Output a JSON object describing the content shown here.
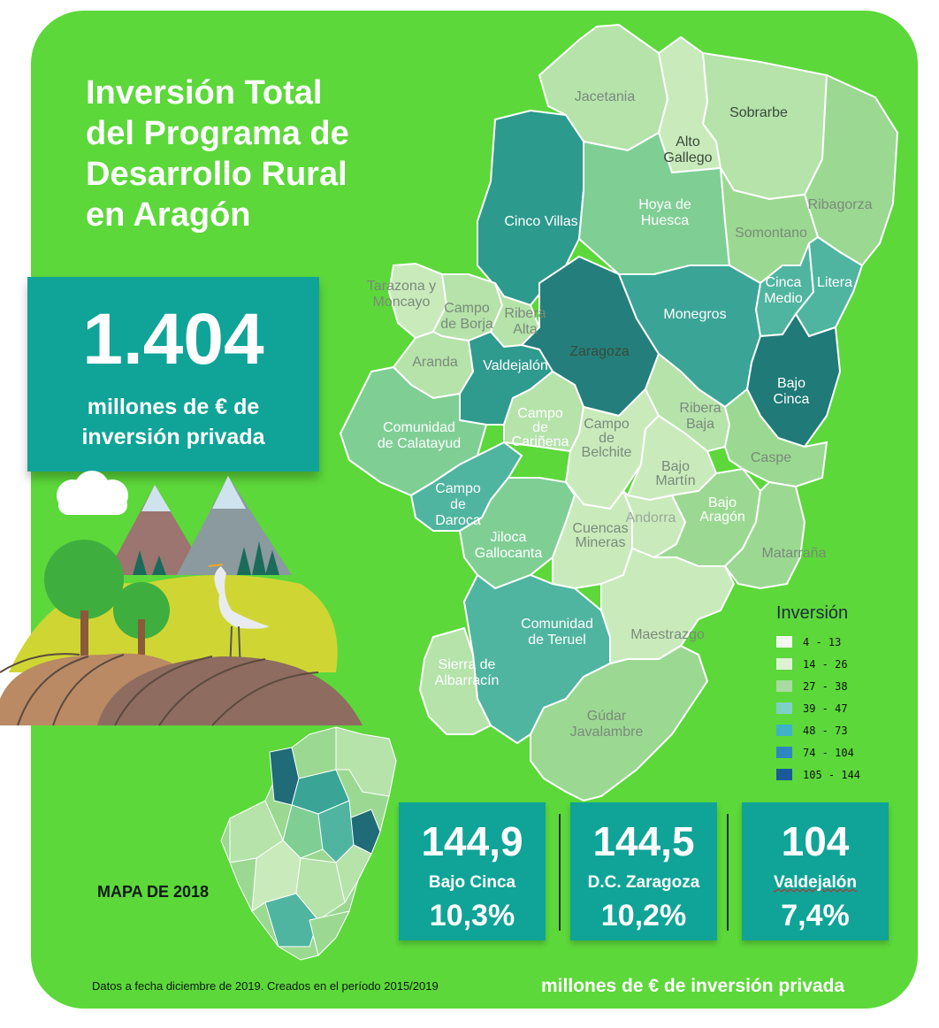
{
  "title_lines": [
    "Inversión Total",
    "del Programa de",
    "Desarrollo Rural",
    "en Aragón"
  ],
  "headline": {
    "value": "1.404",
    "lines": [
      "millones de € de",
      "inversión privada"
    ]
  },
  "regions": [
    {
      "name": "Jacetania",
      "label": "Jacetania",
      "value_band": "14 - 26",
      "color": "#b5e3aa"
    },
    {
      "name": "Alto Gallego",
      "label": "Alto Gallego",
      "value_band": "4 - 13",
      "color": "#c9ebbc"
    },
    {
      "name": "Sobrarbe",
      "label": "Sobrarbe",
      "value_band": "14 - 26",
      "color": "#b5e3aa"
    },
    {
      "name": "Ribagorza",
      "label": "Ribagorza",
      "value_band": "27 - 38",
      "color": "#9bd992"
    },
    {
      "name": "Cinco Villas",
      "label": "Cinco Villas",
      "value_band": "74 - 104",
      "color": "#2d9a8e"
    },
    {
      "name": "Hoya de Huesca",
      "label": "Hoya de Huesca",
      "value_band": "39 - 47",
      "color": "#7fcf95"
    },
    {
      "name": "Somontano",
      "label": "Somontano",
      "value_band": "27 - 38",
      "color": "#9bd992"
    },
    {
      "name": "Cinca Medio",
      "label": "Cinca Medio",
      "value_band": "48 - 73",
      "color": "#4fb5a0"
    },
    {
      "name": "Litera",
      "label": "Litera",
      "value_band": "48 - 73",
      "color": "#4fb5a0"
    },
    {
      "name": "Tarazona y Moncayo",
      "label": "Tarazona y Moncayo",
      "value_band": "4 - 13",
      "color": "#c9ebbc"
    },
    {
      "name": "Campo de Borja",
      "label": "Campo de Borja",
      "value_band": "14 - 26",
      "color": "#b5e3aa"
    },
    {
      "name": "Ribera Alta",
      "label": "Ribera Alta",
      "value_band": "14 - 26",
      "color": "#b5e3aa"
    },
    {
      "name": "Zaragoza",
      "label": "Zaragoza",
      "value_band": "105 - 144",
      "color": "#247f7c"
    },
    {
      "name": "Monegros",
      "label": "Monegros",
      "value_band": "74 - 104",
      "color": "#3aa596"
    },
    {
      "name": "Bajo Cinca",
      "label": "Bajo Cinca",
      "value_band": "105 - 144",
      "color": "#1f7a78"
    },
    {
      "name": "Aranda",
      "label": "Aranda",
      "value_band": "14 - 26",
      "color": "#b5e3aa"
    },
    {
      "name": "Valdejalón",
      "label": "Valdejalón",
      "value_band": "74 - 104",
      "color": "#2f9a8e"
    },
    {
      "name": "Comunidad de Calatayud",
      "label": "Comunidad de Calatayud",
      "value_band": "39 - 47",
      "color": "#7fcf95"
    },
    {
      "name": "Campo de Cariñena",
      "label": "Campo de Cariñena",
      "value_band": "14 - 26",
      "color": "#b5e3aa"
    },
    {
      "name": "Campo de Belchite",
      "label": "Campo de Belchite",
      "value_band": "4 - 13",
      "color": "#c9ebbc"
    },
    {
      "name": "Ribera Baja",
      "label": "Ribera Baja",
      "value_band": "14 - 26",
      "color": "#b5e3aa"
    },
    {
      "name": "Caspe",
      "label": "Caspe",
      "value_band": "27 - 38",
      "color": "#9bd992"
    },
    {
      "name": "Bajo Martín",
      "label": "Bajo Martín",
      "value_band": "4 - 13",
      "color": "#c9ebbc"
    },
    {
      "name": "Campo de Daroca",
      "label": "Campo de Daroca",
      "value_band": "48 - 73",
      "color": "#4fb5a0"
    },
    {
      "name": "Jiloca Gallocanta",
      "label": "Jiloca Gallocanta",
      "value_band": "39 - 47",
      "color": "#7fcf95"
    },
    {
      "name": "Cuencas Mineras",
      "label": "Cuencas Mineras",
      "value_band": "4 - 13",
      "color": "#c9ebbc"
    },
    {
      "name": "Andorra",
      "label": "Andorra",
      "value_band": "4 - 13",
      "color": "#c9ebbc"
    },
    {
      "name": "Bajo Aragón",
      "label": "Bajo Aragón",
      "value_band": "27 - 38",
      "color": "#9bd992"
    },
    {
      "name": "Matarraña",
      "label": "Matarraña",
      "value_band": "27 - 38",
      "color": "#9bd992"
    },
    {
      "name": "Comunidad de Teruel",
      "label": "Comunidad de Teruel",
      "value_band": "48 - 73",
      "color": "#4fb5a0"
    },
    {
      "name": "Maestrazgo",
      "label": "Maestrazgo",
      "value_band": "4 - 13",
      "color": "#c9ebbc"
    },
    {
      "name": "Sierra de Albarracín",
      "label": "Sierra de Albarracín",
      "value_band": "14 - 26",
      "color": "#b5e3aa"
    },
    {
      "name": "Gúdar Javalambre",
      "label": "Gúdar Javalambre",
      "value_band": "27 - 38",
      "color": "#9bd992"
    }
  ],
  "legend": {
    "title": "Inversión",
    "items": [
      {
        "label": "4 - 13",
        "color": "#f2f9ee"
      },
      {
        "label": "14 - 26",
        "color": "#ddf2d4"
      },
      {
        "label": "27 - 38",
        "color": "#a8dba0"
      },
      {
        "label": "39 - 47",
        "color": "#7ed0c6"
      },
      {
        "label": "48 - 73",
        "color": "#3fb2c8"
      },
      {
        "label": "74 - 104",
        "color": "#2e86c0"
      },
      {
        "label": "105 - 144",
        "color": "#1a5a99"
      }
    ]
  },
  "stats": [
    {
      "value": "144,9",
      "name": "Bajo Cinca",
      "pct": "10,3%"
    },
    {
      "value": "144,5",
      "name": "D.C. Zaragoza",
      "pct": "10,2%"
    },
    {
      "value": "104",
      "name": "Valdejalón",
      "pct": "7,4%"
    }
  ],
  "inset_label": "MAPA DE 2018",
  "footnote": "Datos a fecha diciembre de 2019. Creados en el período 2015/2019",
  "unit_note": "millones de € de inversión privada",
  "colors": {
    "background": "#5cd83a",
    "box": "#0fa497",
    "text_light": "#ffffff"
  }
}
